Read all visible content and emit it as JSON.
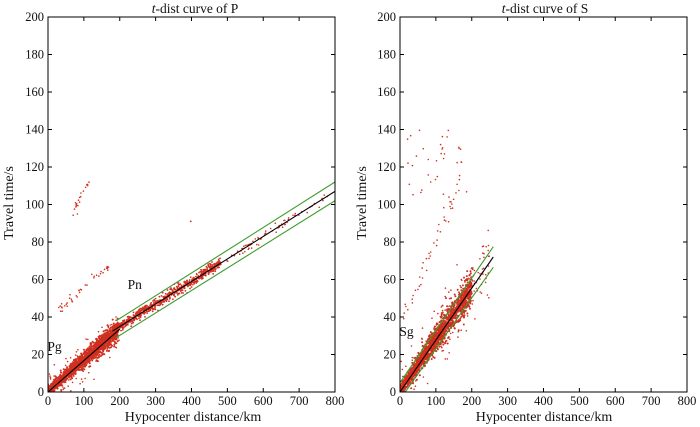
{
  "chart_data": [
    {
      "type": "scatter",
      "title_italic": "t",
      "title_rest": "-dist curve of P",
      "xlabel": "Hypocenter distance/km",
      "ylabel": "Travel time/s",
      "xlim": [
        0,
        800
      ],
      "ylim": [
        0,
        200
      ],
      "xticks": [
        0,
        100,
        200,
        300,
        400,
        500,
        600,
        700,
        800
      ],
      "yticks": [
        0,
        20,
        40,
        60,
        80,
        100,
        120,
        140,
        160,
        180,
        200
      ],
      "annotations": [
        {
          "text": "Pg",
          "x": 18,
          "y": 22
        },
        {
          "text": "Pn",
          "x": 242,
          "y": 55
        }
      ],
      "fit_lines": [
        {
          "name": "Pg fit",
          "x": [
            0,
            200
          ],
          "y": [
            0,
            33.5
          ],
          "color": "#000000"
        },
        {
          "name": "Pn fit",
          "x": [
            180,
            800
          ],
          "y": [
            32.5,
            107
          ],
          "color": "#000000"
        },
        {
          "name": "Pn upper bound",
          "x": [
            190,
            800
          ],
          "y": [
            38,
            112
          ],
          "color": "#3a9a2a"
        },
        {
          "name": "Pn lower bound",
          "x": [
            190,
            800
          ],
          "y": [
            29,
            102
          ],
          "color": "#3a9a2a"
        }
      ],
      "point_color": "#d03020"
    },
    {
      "type": "scatter",
      "title_italic": "t",
      "title_rest": "-dist curve of S",
      "xlabel": "Hypocenter distance/km",
      "ylabel": "Travel time/s",
      "xlim": [
        0,
        800
      ],
      "ylim": [
        0,
        200
      ],
      "xticks": [
        0,
        100,
        200,
        300,
        400,
        500,
        600,
        700,
        800
      ],
      "yticks": [
        0,
        20,
        40,
        60,
        80,
        100,
        120,
        140,
        160,
        180,
        200
      ],
      "annotations": [
        {
          "text": "Sg",
          "x": 18,
          "y": 30
        }
      ],
      "fit_lines": [
        {
          "name": "Sg fit",
          "x": [
            0,
            260
          ],
          "y": [
            0,
            72
          ],
          "color": "#000000"
        },
        {
          "name": "Sg upper bound",
          "x": [
            0,
            260
          ],
          "y": [
            5,
            77.5
          ],
          "color": "#3a9a2a"
        },
        {
          "name": "Sg lower bound",
          "x": [
            0,
            260
          ],
          "y": [
            -4,
            66.5
          ],
          "color": "#3a9a2a"
        }
      ],
      "point_color": "#d03020"
    }
  ]
}
